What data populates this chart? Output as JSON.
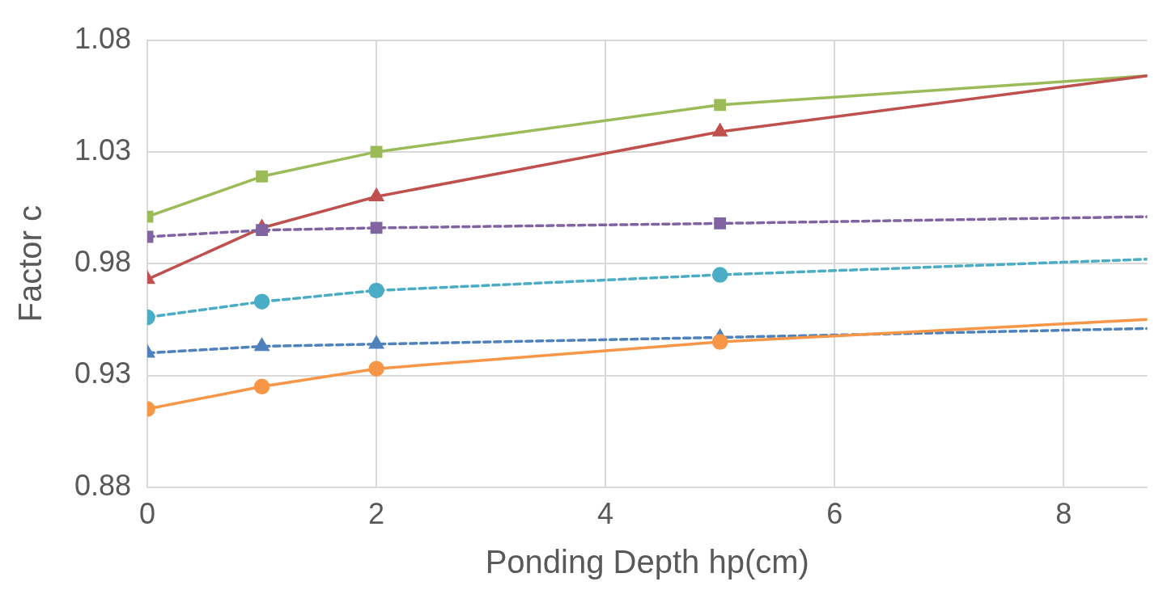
{
  "chart_data": {
    "type": "line",
    "xlabel": "Ponding Depth hp(cm)",
    "ylabel": "Factor c",
    "xlim": [
      0,
      8.73
    ],
    "xticks": [
      0,
      2,
      4,
      6,
      8
    ],
    "ylim": [
      0.88,
      1.08
    ],
    "yticks": [
      0.88,
      0.93,
      0.98,
      1.03,
      1.08
    ],
    "grid": true,
    "legend": false,
    "series": [
      {
        "color": "#9bbb59",
        "marker": "square",
        "line_style": "solid",
        "x": [
          0,
          1,
          2,
          5,
          8.73
        ],
        "values": [
          1.001,
          1.019,
          1.03,
          1.051,
          1.064
        ]
      },
      {
        "color": "#c0504d",
        "marker": "triangle",
        "line_style": "solid",
        "x": [
          0,
          1,
          2,
          5,
          8.73
        ],
        "values": [
          0.973,
          0.996,
          1.01,
          1.039,
          1.064
        ]
      },
      {
        "color": "#8064a2",
        "marker": "square",
        "line_style": "dashed",
        "x": [
          0,
          1,
          2,
          5,
          8.73
        ],
        "values": [
          0.992,
          0.995,
          0.996,
          0.998,
          1.001
        ]
      },
      {
        "color": "#4bacc6",
        "marker": "circle",
        "line_style": "dashed",
        "x": [
          0,
          1,
          2,
          5,
          8.73
        ],
        "values": [
          0.956,
          0.963,
          0.968,
          0.975,
          0.982
        ]
      },
      {
        "color": "#4f81bd",
        "marker": "triangle",
        "line_style": "dashed",
        "x": [
          0,
          1,
          2,
          5,
          8.73
        ],
        "values": [
          0.94,
          0.943,
          0.944,
          0.947,
          0.951
        ]
      },
      {
        "color": "#f79646",
        "marker": "circle",
        "line_style": "solid",
        "x": [
          0,
          1,
          2,
          5,
          8.73
        ],
        "values": [
          0.915,
          0.925,
          0.933,
          0.945,
          0.955
        ]
      }
    ]
  }
}
